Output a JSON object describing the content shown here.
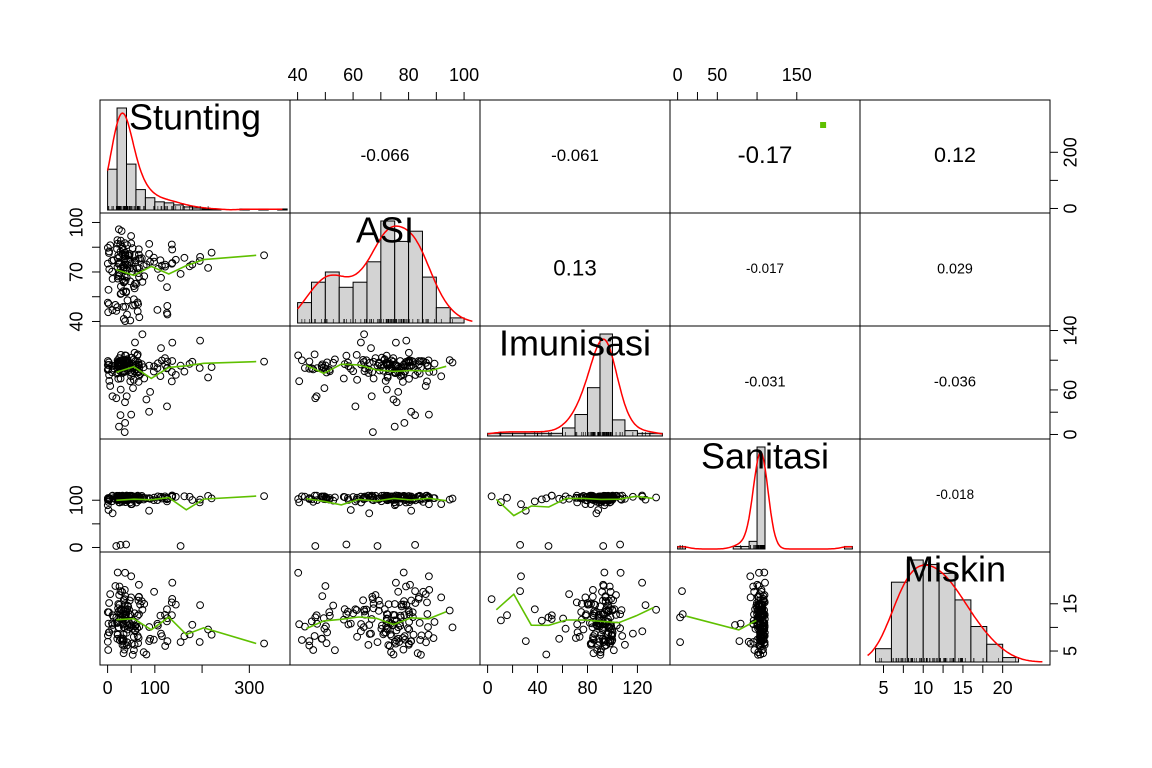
{
  "chart_data": {
    "type": "scatter-matrix",
    "variables": [
      "Stunting",
      "ASI",
      "Imunisasi",
      "Sanitasi",
      "Miskin"
    ],
    "ranges": [
      [
        0,
        370
      ],
      [
        40,
        103
      ],
      [
        0,
        140
      ],
      [
        0,
        220
      ],
      [
        3,
        25
      ]
    ],
    "ticks": {
      "Stunting": [
        "0",
        "100",
        "300"
      ],
      "ASI": [
        "40",
        "60",
        "80",
        "100"
      ],
      "Imunisasi": [
        "0",
        "40",
        "80",
        "120"
      ],
      "Sanitasi": [
        "0",
        "50",
        "150"
      ],
      "Miskin": [
        "5",
        "10",
        "15",
        "20"
      ]
    },
    "left_axis": [
      {
        "row": 1,
        "labels": [
          "40",
          "70",
          "100"
        ]
      },
      {
        "row": 3,
        "labels": [
          "0",
          "100"
        ]
      }
    ],
    "right_axis": [
      {
        "row": 0,
        "labels": [
          "0",
          "200"
        ]
      },
      {
        "row": 2,
        "labels": [
          "0",
          "60",
          "140"
        ]
      },
      {
        "row": 4,
        "labels": [
          "5",
          "15"
        ]
      }
    ],
    "top_axis": [
      "ASI",
      "Sanitasi"
    ],
    "bottom_axis": [
      "Stunting",
      "Imunisasi",
      "Miskin"
    ],
    "correlations": [
      {
        "row": 0,
        "col": 1,
        "value": "-0.066"
      },
      {
        "row": 0,
        "col": 2,
        "value": "-0.061"
      },
      {
        "row": 0,
        "col": 3,
        "value": "-0.17"
      },
      {
        "row": 0,
        "col": 4,
        "value": "0.12"
      },
      {
        "row": 1,
        "col": 2,
        "value": "0.13"
      },
      {
        "row": 1,
        "col": 3,
        "value": "-0.017"
      },
      {
        "row": 1,
        "col": 4,
        "value": "0.029"
      },
      {
        "row": 2,
        "col": 3,
        "value": "-0.031"
      },
      {
        "row": 2,
        "col": 4,
        "value": "-0.036"
      },
      {
        "row": 3,
        "col": 4,
        "value": "-0.018"
      }
    ],
    "significance_marks": [
      {
        "row": 0,
        "col": 3,
        "symbol": "."
      }
    ],
    "histograms": {
      "Stunting": {
        "breaks": [
          0,
          20,
          40,
          60,
          80,
          100,
          120,
          140,
          160,
          180,
          200,
          220,
          240,
          260,
          280,
          300,
          320,
          340,
          360,
          380
        ],
        "counts": [
          40,
          100,
          45,
          20,
          12,
          8,
          7,
          5,
          3,
          2,
          1,
          1,
          0,
          0,
          1,
          0,
          1,
          0,
          1
        ]
      },
      "ASI": {
        "breaks": [
          40,
          45,
          50,
          55,
          60,
          65,
          70,
          75,
          80,
          85,
          90,
          95,
          100
        ],
        "counts": [
          4,
          8,
          10,
          7,
          8,
          12,
          20,
          16,
          18,
          9,
          3,
          1
        ]
      },
      "Imunisasi": {
        "breaks": [
          0,
          10,
          20,
          30,
          40,
          50,
          60,
          70,
          80,
          90,
          100,
          110,
          120,
          130,
          140
        ],
        "counts": [
          1,
          1,
          1,
          1,
          1,
          1,
          3,
          8,
          18,
          38,
          6,
          2,
          1,
          1
        ]
      },
      "Sanitasi": {
        "breaks": [
          0,
          10,
          20,
          30,
          40,
          50,
          60,
          70,
          80,
          90,
          100,
          110,
          120,
          130,
          140,
          150,
          160,
          170,
          180,
          190,
          200,
          210,
          220
        ],
        "counts": [
          1,
          0,
          0,
          0,
          0,
          0,
          0,
          1,
          1,
          3,
          40,
          0,
          0,
          0,
          0,
          0,
          0,
          0,
          0,
          0,
          0,
          1
        ]
      },
      "Miskin": {
        "breaks": [
          4,
          6,
          8,
          10,
          12,
          14,
          16,
          18,
          20,
          22,
          24
        ],
        "counts": [
          3,
          18,
          23,
          22,
          20,
          14,
          8,
          4,
          1,
          0
        ]
      }
    }
  }
}
